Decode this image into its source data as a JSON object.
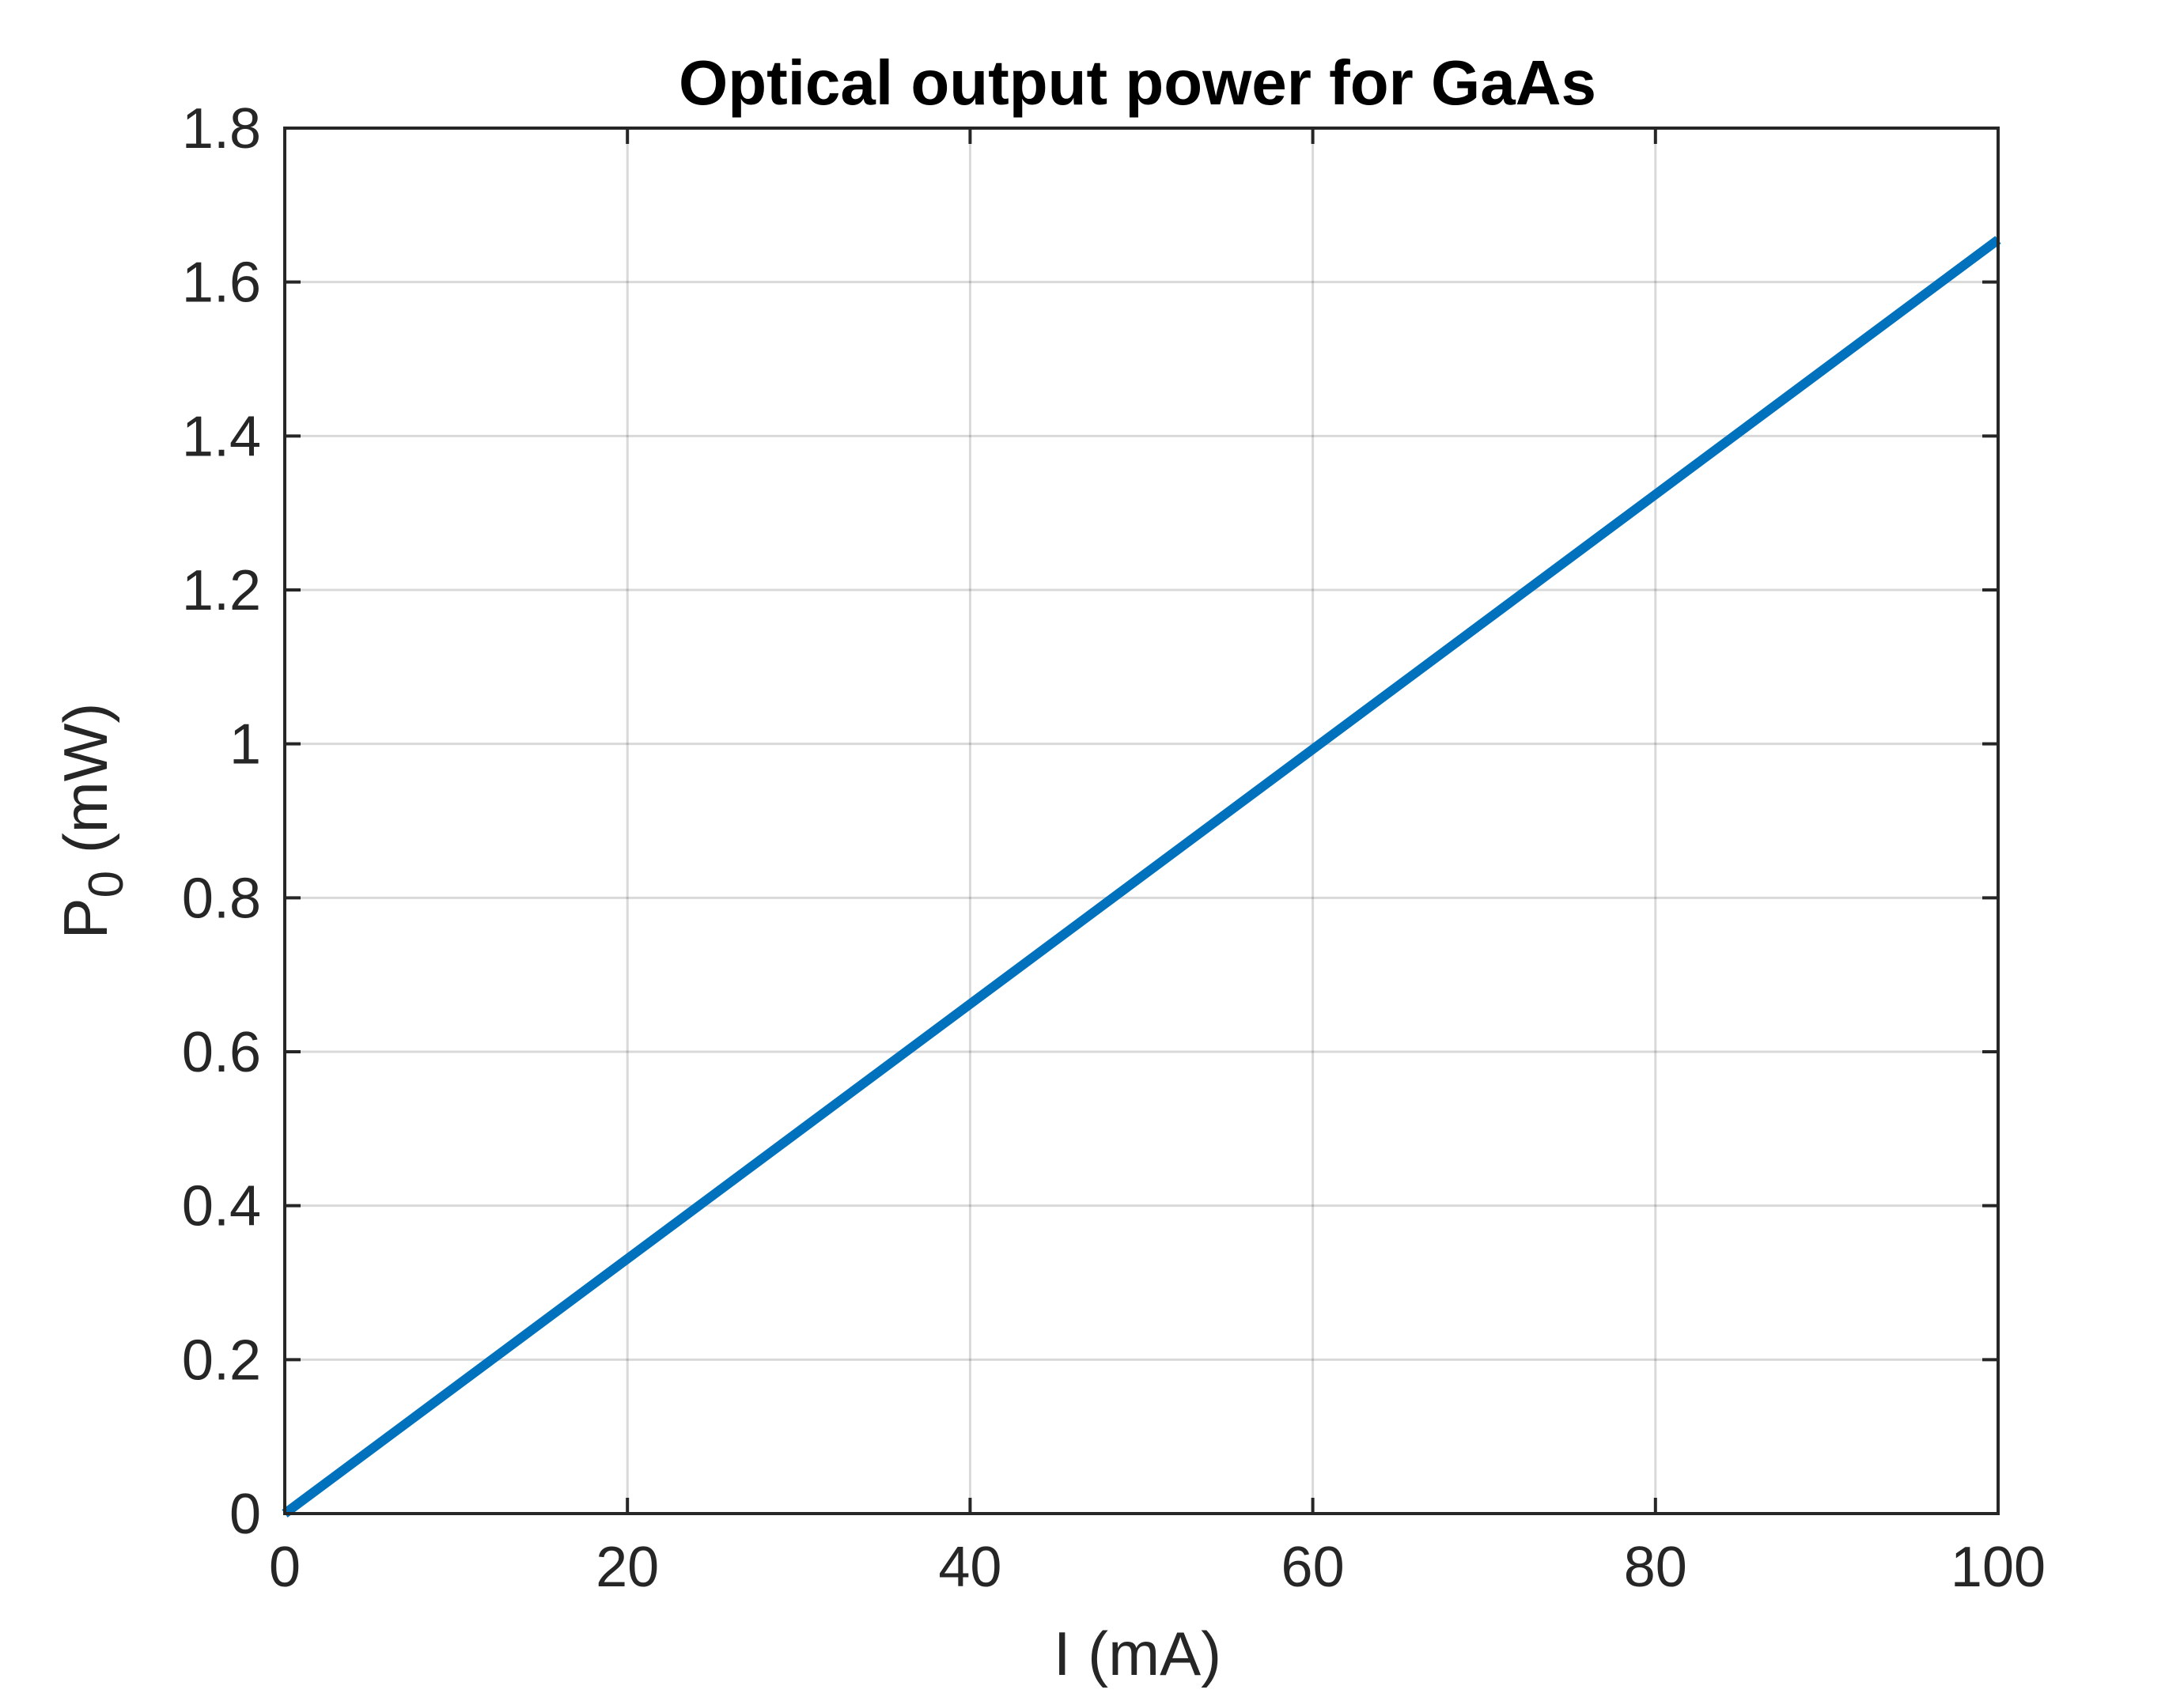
{
  "chart_data": {
    "type": "line",
    "title": "Optical output power for GaAs",
    "xlabel": "I (mA)",
    "ylabel": {
      "main": "P",
      "subscript": "0",
      "unit": " (mW)"
    },
    "xlim": [
      0,
      100
    ],
    "ylim": [
      0,
      1.8
    ],
    "xticks": [
      0,
      20,
      40,
      60,
      80,
      100
    ],
    "xtick_labels": [
      "0",
      "20",
      "40",
      "60",
      "80",
      "100"
    ],
    "yticks": [
      0,
      0.2,
      0.4,
      0.6,
      0.8,
      1.0,
      1.2,
      1.4,
      1.6,
      1.8
    ],
    "ytick_labels": [
      "0",
      "0.2",
      "0.4",
      "0.6",
      "0.8",
      "1",
      "1.2",
      "1.4",
      "1.6",
      "1.8"
    ],
    "grid": true,
    "series": [
      {
        "color": "#0072BD",
        "x": [
          0,
          100
        ],
        "y": [
          0,
          1.655
        ]
      }
    ]
  }
}
